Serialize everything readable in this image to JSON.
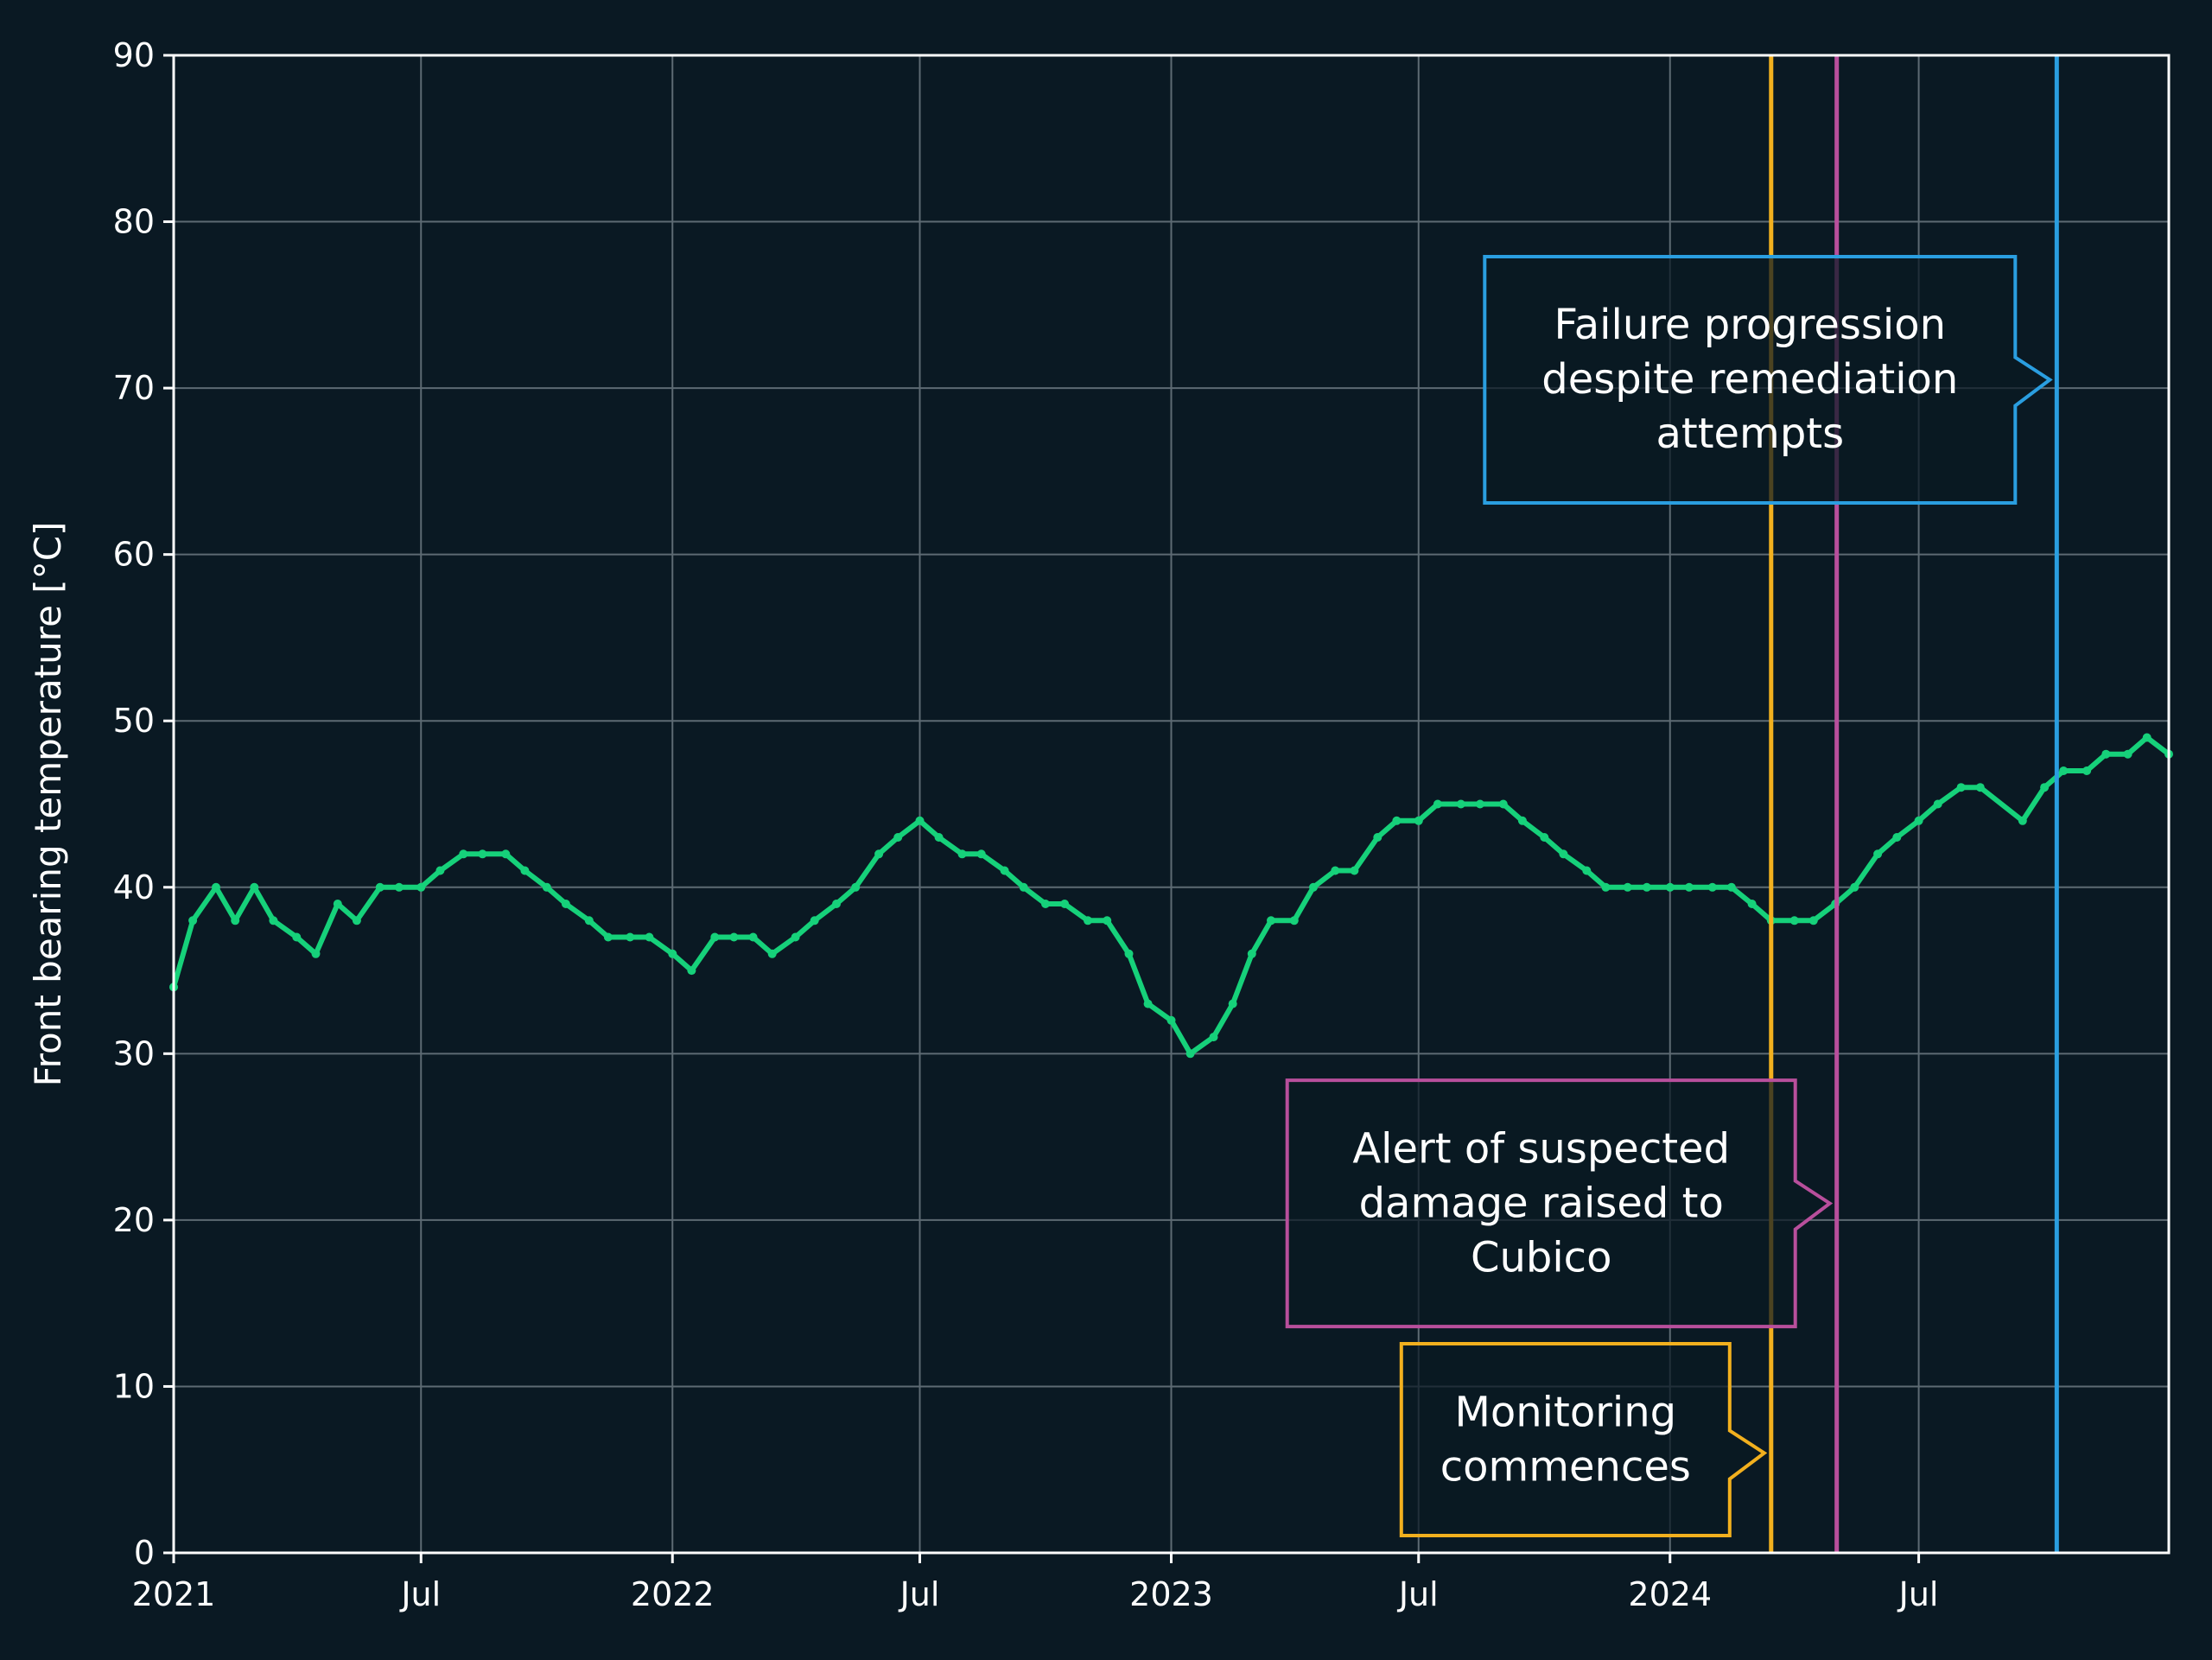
{
  "chart_data": {
    "type": "line",
    "title": "",
    "xlabel": "",
    "ylabel": "Front bearing temperature [°C]",
    "ylim": [
      0,
      90
    ],
    "xlim": [
      "2021-01-01",
      "2024-12-31"
    ],
    "grid": true,
    "y_ticks": [
      0,
      10,
      20,
      30,
      40,
      50,
      60,
      70,
      80,
      90
    ],
    "x_ticks": [
      {
        "date": "2021-01-01",
        "label": "2021"
      },
      {
        "date": "2021-07-01",
        "label": "Jul"
      },
      {
        "date": "2022-01-01",
        "label": "2022"
      },
      {
        "date": "2022-07-01",
        "label": "Jul"
      },
      {
        "date": "2023-01-01",
        "label": "2023"
      },
      {
        "date": "2023-07-01",
        "label": "Jul"
      },
      {
        "date": "2024-01-01",
        "label": "2024"
      },
      {
        "date": "2024-07-01",
        "label": "Jul"
      }
    ],
    "series": [
      {
        "color": "#16d17a",
        "points": [
          [
            "2021-01-01",
            34
          ],
          [
            "2021-01-15",
            38
          ],
          [
            "2021-02-01",
            40
          ],
          [
            "2021-02-15",
            38
          ],
          [
            "2021-03-01",
            40
          ],
          [
            "2021-03-15",
            38
          ],
          [
            "2021-04-01",
            37
          ],
          [
            "2021-04-15",
            36
          ],
          [
            "2021-05-01",
            39
          ],
          [
            "2021-05-15",
            38
          ],
          [
            "2021-06-01",
            40
          ],
          [
            "2021-06-15",
            40
          ],
          [
            "2021-07-01",
            40
          ],
          [
            "2021-07-15",
            41
          ],
          [
            "2021-08-01",
            42
          ],
          [
            "2021-08-15",
            42
          ],
          [
            "2021-09-01",
            42
          ],
          [
            "2021-09-15",
            41
          ],
          [
            "2021-10-01",
            40
          ],
          [
            "2021-10-15",
            39
          ],
          [
            "2021-11-01",
            38
          ],
          [
            "2021-11-15",
            37
          ],
          [
            "2021-12-01",
            37
          ],
          [
            "2021-12-15",
            37
          ],
          [
            "2022-01-01",
            36
          ],
          [
            "2022-01-15",
            35
          ],
          [
            "2022-02-01",
            37
          ],
          [
            "2022-02-15",
            37
          ],
          [
            "2022-03-01",
            37
          ],
          [
            "2022-03-15",
            36
          ],
          [
            "2022-04-01",
            37
          ],
          [
            "2022-04-15",
            38
          ],
          [
            "2022-05-01",
            39
          ],
          [
            "2022-05-15",
            40
          ],
          [
            "2022-06-01",
            42
          ],
          [
            "2022-06-15",
            43
          ],
          [
            "2022-07-01",
            44
          ],
          [
            "2022-07-15",
            43
          ],
          [
            "2022-08-01",
            42
          ],
          [
            "2022-08-15",
            42
          ],
          [
            "2022-09-01",
            41
          ],
          [
            "2022-09-15",
            40
          ],
          [
            "2022-10-01",
            39
          ],
          [
            "2022-10-15",
            39
          ],
          [
            "2022-11-01",
            38
          ],
          [
            "2022-11-15",
            38
          ],
          [
            "2022-12-01",
            36
          ],
          [
            "2022-12-15",
            33
          ],
          [
            "2023-01-01",
            32
          ],
          [
            "2023-01-15",
            30
          ],
          [
            "2023-02-01",
            31
          ],
          [
            "2023-02-15",
            33
          ],
          [
            "2023-03-01",
            36
          ],
          [
            "2023-03-15",
            38
          ],
          [
            "2023-04-01",
            38
          ],
          [
            "2023-04-15",
            40
          ],
          [
            "2023-05-01",
            41
          ],
          [
            "2023-05-15",
            41
          ],
          [
            "2023-06-01",
            43
          ],
          [
            "2023-06-15",
            44
          ],
          [
            "2023-07-01",
            44
          ],
          [
            "2023-07-15",
            45
          ],
          [
            "2023-08-01",
            45
          ],
          [
            "2023-08-15",
            45
          ],
          [
            "2023-09-01",
            45
          ],
          [
            "2023-09-15",
            44
          ],
          [
            "2023-10-01",
            43
          ],
          [
            "2023-10-15",
            42
          ],
          [
            "2023-11-01",
            41
          ],
          [
            "2023-11-15",
            40
          ],
          [
            "2023-12-01",
            40
          ],
          [
            "2023-12-15",
            40
          ],
          [
            "2024-01-01",
            40
          ],
          [
            "2024-01-15",
            40
          ],
          [
            "2024-02-01",
            40
          ],
          [
            "2024-02-15",
            40
          ],
          [
            "2024-03-01",
            39
          ],
          [
            "2024-03-15",
            38
          ],
          [
            "2024-04-01",
            38
          ],
          [
            "2024-04-15",
            38
          ],
          [
            "2024-05-01",
            39
          ],
          [
            "2024-05-15",
            40
          ],
          [
            "2024-06-01",
            42
          ],
          [
            "2024-06-15",
            43
          ],
          [
            "2024-07-01",
            44
          ],
          [
            "2024-07-15",
            45
          ],
          [
            "2024-08-01",
            46
          ],
          [
            "2024-08-15",
            46
          ],
          [
            "2024-09-15",
            44
          ],
          [
            "2024-10-01",
            46
          ],
          [
            "2024-10-15",
            47
          ],
          [
            "2024-11-01",
            47
          ],
          [
            "2024-11-15",
            48
          ],
          [
            "2024-12-01",
            48
          ],
          [
            "2024-12-15",
            49
          ],
          [
            "2024-12-31",
            48
          ]
        ]
      }
    ],
    "events": [
      {
        "date": "2024-03-15",
        "color": "#f2b01e",
        "text": [
          "Monitoring",
          "commences"
        ],
        "arrow_y": 6
      },
      {
        "date": "2024-05-02",
        "color": "#b84f9c",
        "text": [
          "Alert of suspected",
          "damage raised to",
          "Cubico"
        ],
        "arrow_y": 21
      },
      {
        "date": "2024-10-10",
        "color": "#2a9ee0",
        "text": [
          "Failure progression",
          "despite remediation",
          "attempts"
        ],
        "arrow_y": 70.5
      }
    ]
  },
  "colors": {
    "background": "#0a1923",
    "axis": "#ffffff",
    "grid": "#5d6a73"
  }
}
